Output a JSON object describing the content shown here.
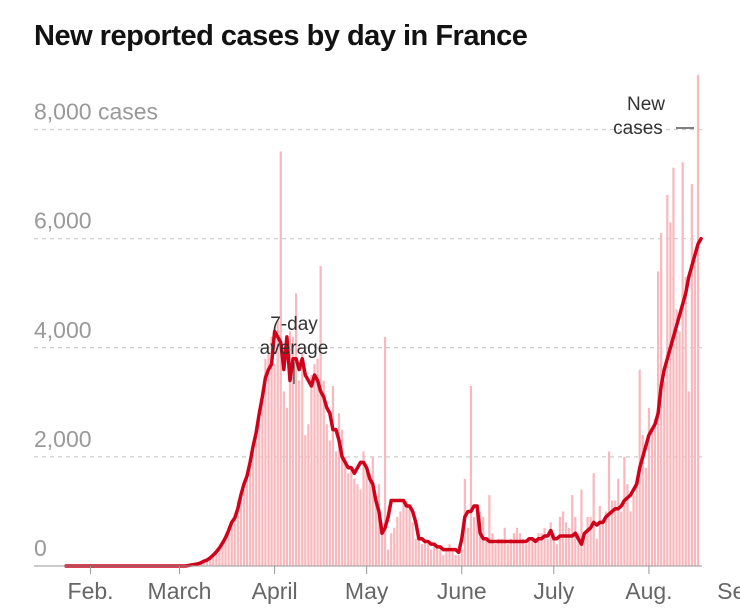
{
  "page": {
    "title": "New reported cases by day in France"
  },
  "chart_data": {
    "type": "bar",
    "title": "New reported cases by day in France",
    "xlabel": "",
    "ylabel": "",
    "ylim": [
      0,
      9000
    ],
    "yticks": [
      0,
      2000,
      4000,
      6000,
      8000
    ],
    "ytick_labels": [
      "0",
      "2,000",
      "4,000",
      "6,000",
      "8,000 cases"
    ],
    "grid": true,
    "date_start": "2020-01-24",
    "x_ticks": [
      {
        "date": "2020-02-01",
        "label": "Feb."
      },
      {
        "date": "2020-03-01",
        "label": "March"
      },
      {
        "date": "2020-04-01",
        "label": "April"
      },
      {
        "date": "2020-05-01",
        "label": "May"
      },
      {
        "date": "2020-06-01",
        "label": "June"
      },
      {
        "date": "2020-07-01",
        "label": "July"
      },
      {
        "date": "2020-08-01",
        "label": "Aug."
      },
      {
        "date": "2020-09-01",
        "label": "Sept."
      }
    ],
    "series": [
      {
        "name": "New cases",
        "type": "bar",
        "color": "#f9b8bd",
        "values": [
          0,
          0,
          0,
          0,
          0,
          0,
          0,
          0,
          0,
          0,
          0,
          0,
          0,
          0,
          0,
          0,
          0,
          0,
          0,
          0,
          0,
          0,
          0,
          0,
          0,
          0,
          0,
          0,
          0,
          0,
          0,
          0,
          0,
          0,
          0,
          0,
          0,
          0,
          0,
          0,
          10,
          20,
          30,
          40,
          60,
          90,
          110,
          150,
          200,
          260,
          330,
          420,
          520,
          650,
          800,
          880,
          1200,
          1300,
          1400,
          1650,
          1800,
          2200,
          2400,
          2700,
          3200,
          3800,
          3900,
          4200,
          3700,
          4500,
          7600,
          3200,
          2900,
          4300,
          4200,
          5000,
          3400,
          3900,
          2400,
          2600,
          3500,
          3700,
          3800,
          5500,
          3400,
          2600,
          2300,
          3300,
          2100,
          2800,
          2500,
          2000,
          1700,
          1800,
          1600,
          1500,
          1400,
          2100,
          1800,
          1700,
          2000,
          1200,
          1500,
          800,
          4200,
          300,
          600,
          700,
          900,
          1000,
          1200,
          1200,
          1100,
          800,
          500,
          500,
          400,
          500,
          400,
          300,
          400,
          400,
          300,
          200,
          300,
          400,
          300,
          200,
          200,
          300,
          1600,
          700,
          3300,
          900,
          1100,
          1000,
          900,
          500,
          1300,
          600,
          400,
          500,
          500,
          700,
          400,
          500,
          600,
          700,
          600,
          500,
          400,
          500,
          500,
          500,
          600,
          600,
          700,
          500,
          800,
          600,
          400,
          900,
          1000,
          800,
          700,
          1300,
          900,
          600,
          1400,
          500,
          900,
          900,
          1700,
          500,
          1100,
          800,
          1000,
          2100,
          1200,
          1200,
          1600,
          1000,
          2000,
          1500,
          1000,
          1300,
          1600,
          3600,
          2400,
          1800,
          2900,
          2500,
          2700,
          5400,
          6100,
          3400,
          6800,
          6300,
          7300,
          4700,
          4300,
          7400,
          5300,
          3200,
          7000,
          5600,
          9000
        ]
      },
      {
        "name": "7-day average",
        "type": "line",
        "color": "#d0021b",
        "values": [
          0,
          0,
          0,
          0,
          0,
          0,
          0,
          0,
          0,
          0,
          0,
          0,
          0,
          0,
          0,
          0,
          0,
          0,
          0,
          0,
          0,
          0,
          0,
          0,
          0,
          0,
          0,
          0,
          0,
          0,
          0,
          0,
          0,
          0,
          0,
          0,
          0,
          0,
          0,
          0,
          10,
          20,
          30,
          40,
          60,
          90,
          110,
          150,
          200,
          260,
          330,
          420,
          520,
          650,
          800,
          880,
          1050,
          1300,
          1500,
          1650,
          1900,
          2200,
          2450,
          2800,
          3100,
          3450,
          3600,
          3700,
          4300,
          4200,
          4100,
          3600,
          4200,
          3400,
          3800,
          3800,
          3600,
          3800,
          3500,
          3400,
          3300,
          3500,
          3400,
          3200,
          3100,
          2900,
          2800,
          2500,
          2500,
          2300,
          2000,
          1900,
          1800,
          1800,
          1700,
          1800,
          1900,
          1900,
          1800,
          1600,
          1500,
          1200,
          1000,
          600,
          700,
          900,
          1200,
          1200,
          1200,
          1200,
          1200,
          1100,
          1100,
          1000,
          800,
          500,
          500,
          450,
          450,
          400,
          400,
          350,
          350,
          300,
          300,
          300,
          300,
          300,
          250,
          500,
          900,
          1000,
          1000,
          1100,
          1100,
          600,
          500,
          500,
          450,
          450,
          450,
          450,
          450,
          450,
          450,
          450,
          450,
          450,
          450,
          450,
          450,
          500,
          500,
          450,
          500,
          500,
          550,
          550,
          650,
          500,
          500,
          550,
          550,
          550,
          550,
          550,
          600,
          500,
          400,
          600,
          650,
          700,
          800,
          750,
          800,
          800,
          900,
          950,
          1000,
          1050,
          1050,
          1100,
          1200,
          1250,
          1300,
          1400,
          1500,
          1800,
          2000,
          2200,
          2400,
          2500,
          2600,
          2800,
          3300,
          3600,
          3800,
          4000,
          4200,
          4400,
          4600,
          4800,
          5000,
          5300,
          5500,
          5700,
          5900,
          6000
        ]
      }
    ],
    "annotations": [
      {
        "text": [
          "7-day",
          "average"
        ]
      },
      {
        "text": [
          "New",
          "cases"
        ]
      }
    ]
  }
}
